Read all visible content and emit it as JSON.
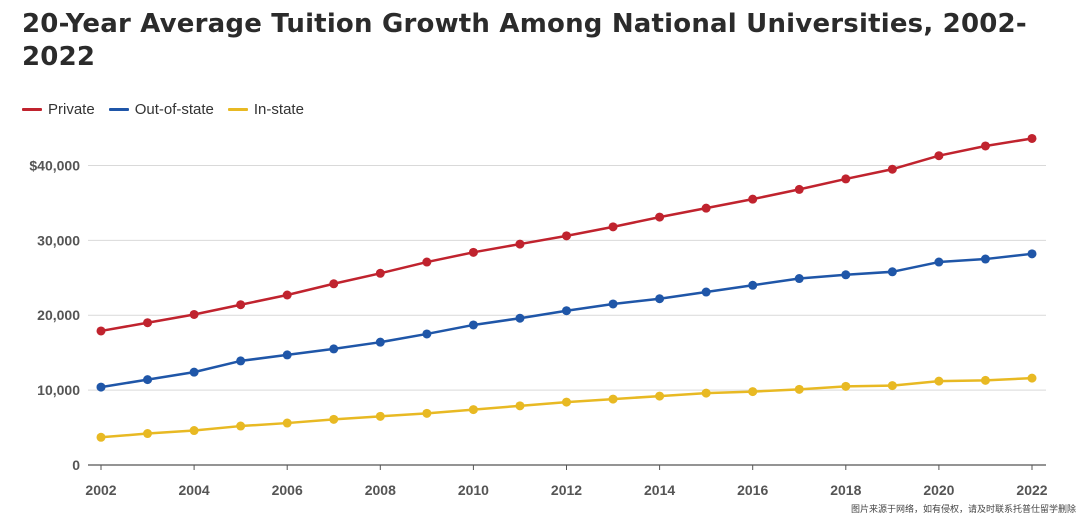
{
  "chart_data": {
    "type": "line",
    "title": "20-Year Average Tuition Growth Among National Universities, 2002-2022",
    "xlabel": "",
    "ylabel": "",
    "x": [
      2002,
      2003,
      2004,
      2005,
      2006,
      2007,
      2008,
      2009,
      2010,
      2011,
      2012,
      2013,
      2014,
      2015,
      2016,
      2017,
      2018,
      2019,
      2020,
      2021,
      2022
    ],
    "x_ticks": [
      "2002",
      "2004",
      "2006",
      "2008",
      "2010",
      "2012",
      "2014",
      "2016",
      "2018",
      "2020",
      "2022"
    ],
    "y_ticks": [
      "0",
      "10,000",
      "20,000",
      "30,000",
      "$40,000"
    ],
    "y_tick_values": [
      0,
      10000,
      20000,
      30000,
      40000
    ],
    "ylim": [
      0,
      45000
    ],
    "grid": "horizontal",
    "legend_position": "top-left",
    "series": [
      {
        "name": "Private",
        "color": "#c0232e",
        "values": [
          17900,
          19000,
          20100,
          21400,
          22700,
          24200,
          25600,
          27100,
          28400,
          29500,
          30600,
          31800,
          33100,
          34300,
          35500,
          36800,
          38200,
          39500,
          41300,
          42600,
          43600
        ]
      },
      {
        "name": "Out-of-state",
        "color": "#1f56a8",
        "values": [
          10400,
          11400,
          12400,
          13900,
          14700,
          15500,
          16400,
          17500,
          18700,
          19600,
          20600,
          21500,
          22200,
          23100,
          24000,
          24900,
          25400,
          25800,
          27100,
          27500,
          28200
        ]
      },
      {
        "name": "In-state",
        "color": "#e8b923",
        "values": [
          3700,
          4200,
          4600,
          5200,
          5600,
          6100,
          6500,
          6900,
          7400,
          7900,
          8400,
          8800,
          9200,
          9600,
          9800,
          10100,
          10500,
          10600,
          11200,
          11300,
          11600
        ]
      }
    ]
  },
  "watermark": "图片来源于网络，如有侵权，请及时联系托普仕留学删除"
}
